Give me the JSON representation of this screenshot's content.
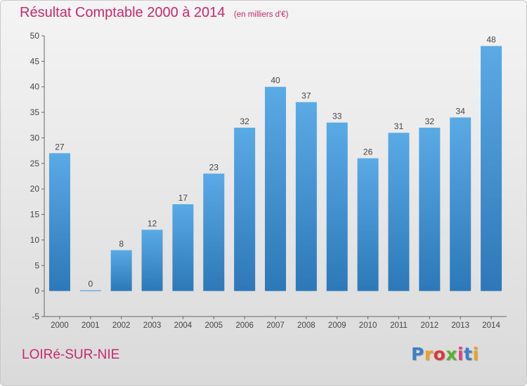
{
  "title": "Résultat Comptable 2000 à 2014",
  "unit": "(en milliers d'€)",
  "commune": "LOIRé-SUR-NIE",
  "logo": {
    "letters": [
      "P",
      "r",
      "o",
      "x",
      "i",
      "t",
      "i"
    ],
    "colors": [
      "#3a7fc8",
      "#f0a020",
      "#d83a3a",
      "#5ab030",
      "#e04080",
      "#3a7fc8",
      "#f0a020"
    ]
  },
  "colors": {
    "accent": "#c8286e",
    "bar_light": "#5aaae6",
    "bar_dark": "#2c78b8",
    "axis": "#666666"
  },
  "chart_data": {
    "type": "bar",
    "categories": [
      "2000",
      "2001",
      "2002",
      "2003",
      "2004",
      "2005",
      "2006",
      "2007",
      "2008",
      "2009",
      "2010",
      "2011",
      "2012",
      "2013",
      "2014"
    ],
    "values": [
      27,
      0,
      8,
      12,
      17,
      23,
      32,
      40,
      37,
      33,
      26,
      31,
      32,
      34,
      48
    ],
    "ylim": [
      -5,
      50
    ],
    "yticks": [
      -5,
      0,
      5,
      10,
      15,
      20,
      25,
      30,
      35,
      40,
      45,
      50
    ],
    "grid": false,
    "xlabel": "",
    "ylabel": ""
  }
}
